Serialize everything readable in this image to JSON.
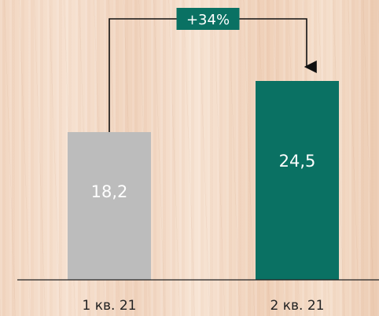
{
  "chart_data": {
    "type": "bar",
    "categories": [
      "1 кв. 21",
      "2 кв. 21"
    ],
    "values": [
      18.2,
      24.5
    ],
    "value_labels": [
      "18,2",
      "24,5"
    ],
    "bar_colors": [
      "#bcbcbc",
      "#0a7163"
    ],
    "ylim": [
      0,
      24.5
    ],
    "grid": false,
    "annotation": {
      "text": "+34%",
      "from": "1 кв. 21",
      "to": "2 кв. 21",
      "color": "#0a7163"
    },
    "title": "",
    "xlabel": "",
    "ylabel": ""
  }
}
